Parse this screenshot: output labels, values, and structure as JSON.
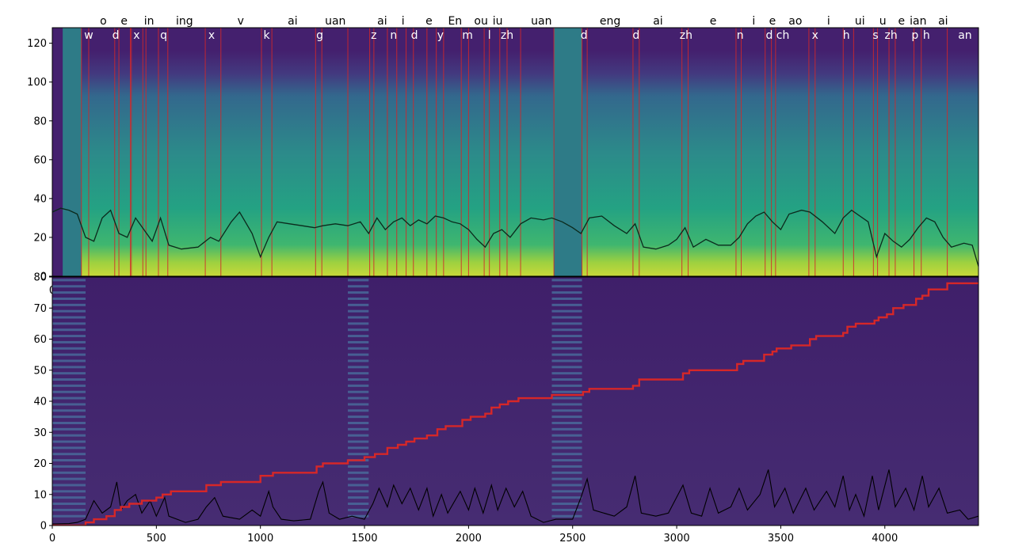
{
  "chart_data": [
    {
      "type": "heatmap",
      "panel": "mel-spectrogram",
      "xlim": [
        0,
        4450
      ],
      "ylim": [
        0,
        128
      ],
      "yticks": [
        0,
        20,
        40,
        60,
        80,
        100,
        120
      ],
      "x_tick_partially_visible": "0",
      "phoneme_boundaries": [
        140,
        175,
        300,
        320,
        375,
        380,
        435,
        450,
        510,
        555,
        735,
        810,
        1005,
        1055,
        1265,
        1295,
        1420,
        1525,
        1545,
        1610,
        1655,
        1700,
        1735,
        1800,
        1845,
        1880,
        1965,
        2000,
        2075,
        2100,
        2150,
        2185,
        2250,
        2410,
        2545,
        2570,
        2790,
        2820,
        3025,
        3055,
        3285,
        3310,
        3425,
        3455,
        3475,
        3635,
        3665,
        3800,
        3850,
        3945,
        3965,
        4020,
        4050,
        4140,
        4175,
        4300
      ],
      "phoneme_labels_bottom_row": [
        {
          "x": 175,
          "text": "w"
        },
        {
          "x": 305,
          "text": "d"
        },
        {
          "x": 405,
          "text": "x"
        },
        {
          "x": 535,
          "text": "q"
        },
        {
          "x": 765,
          "text": "x"
        },
        {
          "x": 1030,
          "text": "k"
        },
        {
          "x": 1285,
          "text": "g"
        },
        {
          "x": 1545,
          "text": "z"
        },
        {
          "x": 1640,
          "text": "n"
        },
        {
          "x": 1740,
          "text": "d"
        },
        {
          "x": 1865,
          "text": "y"
        },
        {
          "x": 1995,
          "text": "m"
        },
        {
          "x": 2100,
          "text": "l"
        },
        {
          "x": 2185,
          "text": "zh"
        },
        {
          "x": 2555,
          "text": "d"
        },
        {
          "x": 2805,
          "text": "d"
        },
        {
          "x": 3045,
          "text": "zh"
        },
        {
          "x": 3305,
          "text": "n"
        },
        {
          "x": 3445,
          "text": "d"
        },
        {
          "x": 3510,
          "text": "ch"
        },
        {
          "x": 3665,
          "text": "x"
        },
        {
          "x": 3815,
          "text": "h"
        },
        {
          "x": 3955,
          "text": "s"
        },
        {
          "x": 4030,
          "text": "zh"
        },
        {
          "x": 4145,
          "text": "p"
        },
        {
          "x": 4200,
          "text": "h"
        },
        {
          "x": 4385,
          "text": "an"
        }
      ],
      "phoneme_labels_top_row": [
        {
          "x": 245,
          "text": "o"
        },
        {
          "x": 345,
          "text": "e"
        },
        {
          "x": 465,
          "text": "in"
        },
        {
          "x": 635,
          "text": "ing"
        },
        {
          "x": 905,
          "text": "v"
        },
        {
          "x": 1155,
          "text": "ai"
        },
        {
          "x": 1360,
          "text": "uan"
        },
        {
          "x": 1585,
          "text": "ai"
        },
        {
          "x": 1685,
          "text": "i"
        },
        {
          "x": 1810,
          "text": "e"
        },
        {
          "x": 1935,
          "text": "En"
        },
        {
          "x": 2060,
          "text": "ou"
        },
        {
          "x": 2140,
          "text": "iu"
        },
        {
          "x": 2350,
          "text": "uan"
        },
        {
          "x": 2680,
          "text": "eng"
        },
        {
          "x": 2910,
          "text": "ai"
        },
        {
          "x": 3175,
          "text": "e"
        },
        {
          "x": 3370,
          "text": "i"
        },
        {
          "x": 3460,
          "text": "e"
        },
        {
          "x": 3570,
          "text": "ao"
        },
        {
          "x": 3730,
          "text": "i"
        },
        {
          "x": 3880,
          "text": "ui"
        },
        {
          "x": 3990,
          "text": "u"
        },
        {
          "x": 4080,
          "text": "e"
        },
        {
          "x": 4160,
          "text": "ian"
        },
        {
          "x": 4280,
          "text": "ai"
        }
      ],
      "pitch_curve": [
        [
          0,
          33
        ],
        [
          40,
          35
        ],
        [
          80,
          34
        ],
        [
          120,
          32
        ],
        [
          160,
          20
        ],
        [
          200,
          18
        ],
        [
          240,
          30
        ],
        [
          280,
          34
        ],
        [
          320,
          22
        ],
        [
          360,
          20
        ],
        [
          400,
          30
        ],
        [
          440,
          24
        ],
        [
          480,
          18
        ],
        [
          520,
          30
        ],
        [
          560,
          16
        ],
        [
          620,
          14
        ],
        [
          700,
          15
        ],
        [
          760,
          20
        ],
        [
          800,
          18
        ],
        [
          860,
          28
        ],
        [
          900,
          33
        ],
        [
          960,
          22
        ],
        [
          1000,
          10
        ],
        [
          1040,
          20
        ],
        [
          1080,
          28
        ],
        [
          1140,
          27
        ],
        [
          1200,
          26
        ],
        [
          1260,
          25
        ],
        [
          1300,
          26
        ],
        [
          1360,
          27
        ],
        [
          1420,
          26
        ],
        [
          1480,
          28
        ],
        [
          1520,
          22
        ],
        [
          1560,
          30
        ],
        [
          1600,
          24
        ],
        [
          1640,
          28
        ],
        [
          1680,
          30
        ],
        [
          1720,
          26
        ],
        [
          1760,
          29
        ],
        [
          1800,
          27
        ],
        [
          1840,
          31
        ],
        [
          1880,
          30
        ],
        [
          1920,
          28
        ],
        [
          1960,
          27
        ],
        [
          2000,
          24
        ],
        [
          2040,
          19
        ],
        [
          2080,
          15
        ],
        [
          2120,
          22
        ],
        [
          2160,
          24
        ],
        [
          2200,
          20
        ],
        [
          2250,
          27
        ],
        [
          2300,
          30
        ],
        [
          2360,
          29
        ],
        [
          2400,
          30
        ],
        [
          2450,
          28
        ],
        [
          2500,
          25
        ],
        [
          2540,
          22
        ],
        [
          2580,
          30
        ],
        [
          2640,
          31
        ],
        [
          2700,
          26
        ],
        [
          2760,
          22
        ],
        [
          2800,
          27
        ],
        [
          2840,
          15
        ],
        [
          2900,
          14
        ],
        [
          2960,
          16
        ],
        [
          3000,
          19
        ],
        [
          3040,
          25
        ],
        [
          3080,
          15
        ],
        [
          3140,
          19
        ],
        [
          3200,
          16
        ],
        [
          3260,
          16
        ],
        [
          3300,
          20
        ],
        [
          3340,
          27
        ],
        [
          3380,
          31
        ],
        [
          3420,
          33
        ],
        [
          3460,
          28
        ],
        [
          3500,
          24
        ],
        [
          3540,
          32
        ],
        [
          3600,
          34
        ],
        [
          3640,
          33
        ],
        [
          3700,
          28
        ],
        [
          3760,
          22
        ],
        [
          3800,
          30
        ],
        [
          3840,
          34
        ],
        [
          3880,
          31
        ],
        [
          3920,
          28
        ],
        [
          3960,
          10
        ],
        [
          4000,
          22
        ],
        [
          4040,
          18
        ],
        [
          4080,
          15
        ],
        [
          4120,
          19
        ],
        [
          4160,
          25
        ],
        [
          4200,
          30
        ],
        [
          4240,
          28
        ],
        [
          4280,
          20
        ],
        [
          4320,
          15
        ],
        [
          4380,
          17
        ],
        [
          4420,
          16
        ],
        [
          4450,
          5
        ]
      ]
    },
    {
      "type": "heatmap",
      "panel": "attention-alignment",
      "xlim": [
        0,
        4450
      ],
      "ylim": [
        0,
        80
      ],
      "xticks": [
        0,
        500,
        1000,
        1500,
        2000,
        2500,
        3000,
        3500,
        4000
      ],
      "yticks": [
        0,
        10,
        20,
        30,
        40,
        50,
        60,
        70,
        80
      ],
      "alignment_path": [
        [
          0,
          0
        ],
        [
          160,
          1
        ],
        [
          200,
          2
        ],
        [
          260,
          3
        ],
        [
          300,
          5
        ],
        [
          330,
          6
        ],
        [
          370,
          7
        ],
        [
          430,
          8
        ],
        [
          500,
          9
        ],
        [
          530,
          10
        ],
        [
          570,
          11
        ],
        [
          740,
          13
        ],
        [
          810,
          14
        ],
        [
          1000,
          16
        ],
        [
          1060,
          17
        ],
        [
          1270,
          19
        ],
        [
          1300,
          20
        ],
        [
          1420,
          21
        ],
        [
          1500,
          22
        ],
        [
          1550,
          23
        ],
        [
          1610,
          25
        ],
        [
          1660,
          26
        ],
        [
          1700,
          27
        ],
        [
          1740,
          28
        ],
        [
          1800,
          29
        ],
        [
          1850,
          31
        ],
        [
          1890,
          32
        ],
        [
          1970,
          34
        ],
        [
          2010,
          35
        ],
        [
          2080,
          36
        ],
        [
          2110,
          38
        ],
        [
          2150,
          39
        ],
        [
          2190,
          40
        ],
        [
          2240,
          41
        ],
        [
          2400,
          42
        ],
        [
          2550,
          43
        ],
        [
          2580,
          44
        ],
        [
          2790,
          45
        ],
        [
          2820,
          47
        ],
        [
          3030,
          49
        ],
        [
          3060,
          50
        ],
        [
          3290,
          52
        ],
        [
          3320,
          53
        ],
        [
          3420,
          55
        ],
        [
          3460,
          56
        ],
        [
          3480,
          57
        ],
        [
          3550,
          58
        ],
        [
          3640,
          60
        ],
        [
          3670,
          61
        ],
        [
          3800,
          62
        ],
        [
          3820,
          64
        ],
        [
          3860,
          65
        ],
        [
          3950,
          66
        ],
        [
          3970,
          67
        ],
        [
          4010,
          68
        ],
        [
          4040,
          70
        ],
        [
          4090,
          71
        ],
        [
          4150,
          73
        ],
        [
          4180,
          74
        ],
        [
          4210,
          76
        ],
        [
          4300,
          78
        ],
        [
          4450,
          78
        ]
      ],
      "energy_curve": [
        [
          0,
          0.5
        ],
        [
          80,
          0.6
        ],
        [
          120,
          1
        ],
        [
          160,
          2
        ],
        [
          200,
          8
        ],
        [
          240,
          4
        ],
        [
          280,
          6
        ],
        [
          310,
          14
        ],
        [
          330,
          5
        ],
        [
          360,
          8
        ],
        [
          400,
          10
        ],
        [
          430,
          4
        ],
        [
          470,
          8
        ],
        [
          500,
          3
        ],
        [
          540,
          9
        ],
        [
          560,
          3
        ],
        [
          640,
          1
        ],
        [
          700,
          2
        ],
        [
          740,
          6
        ],
        [
          780,
          9
        ],
        [
          820,
          3
        ],
        [
          900,
          2
        ],
        [
          960,
          5
        ],
        [
          1000,
          3
        ],
        [
          1040,
          11
        ],
        [
          1060,
          6
        ],
        [
          1100,
          2
        ],
        [
          1160,
          1.5
        ],
        [
          1240,
          2
        ],
        [
          1280,
          11
        ],
        [
          1300,
          14
        ],
        [
          1330,
          4
        ],
        [
          1380,
          2
        ],
        [
          1440,
          3
        ],
        [
          1500,
          2
        ],
        [
          1540,
          7
        ],
        [
          1570,
          12
        ],
        [
          1610,
          6
        ],
        [
          1640,
          13
        ],
        [
          1680,
          7
        ],
        [
          1720,
          12
        ],
        [
          1760,
          5
        ],
        [
          1800,
          12
        ],
        [
          1830,
          3
        ],
        [
          1870,
          10
        ],
        [
          1900,
          4
        ],
        [
          1960,
          11
        ],
        [
          2000,
          5
        ],
        [
          2030,
          12
        ],
        [
          2070,
          4
        ],
        [
          2110,
          13
        ],
        [
          2140,
          5
        ],
        [
          2180,
          12
        ],
        [
          2220,
          6
        ],
        [
          2260,
          11
        ],
        [
          2300,
          3
        ],
        [
          2360,
          1
        ],
        [
          2420,
          2
        ],
        [
          2500,
          2
        ],
        [
          2540,
          9
        ],
        [
          2570,
          15
        ],
        [
          2600,
          5
        ],
        [
          2700,
          3
        ],
        [
          2760,
          6
        ],
        [
          2800,
          16
        ],
        [
          2830,
          4
        ],
        [
          2900,
          3
        ],
        [
          2960,
          4
        ],
        [
          3030,
          13
        ],
        [
          3070,
          4
        ],
        [
          3120,
          3
        ],
        [
          3160,
          12
        ],
        [
          3200,
          4
        ],
        [
          3260,
          6
        ],
        [
          3300,
          12
        ],
        [
          3340,
          5
        ],
        [
          3400,
          10
        ],
        [
          3440,
          18
        ],
        [
          3470,
          6
        ],
        [
          3520,
          12
        ],
        [
          3560,
          4
        ],
        [
          3620,
          12
        ],
        [
          3660,
          5
        ],
        [
          3720,
          11
        ],
        [
          3760,
          6
        ],
        [
          3800,
          16
        ],
        [
          3830,
          5
        ],
        [
          3860,
          10
        ],
        [
          3900,
          3
        ],
        [
          3940,
          16
        ],
        [
          3970,
          5
        ],
        [
          4020,
          18
        ],
        [
          4050,
          6
        ],
        [
          4100,
          12
        ],
        [
          4140,
          5
        ],
        [
          4180,
          16
        ],
        [
          4210,
          6
        ],
        [
          4260,
          12
        ],
        [
          4300,
          4
        ],
        [
          4360,
          5
        ],
        [
          4400,
          2
        ],
        [
          4450,
          3
        ]
      ]
    }
  ]
}
